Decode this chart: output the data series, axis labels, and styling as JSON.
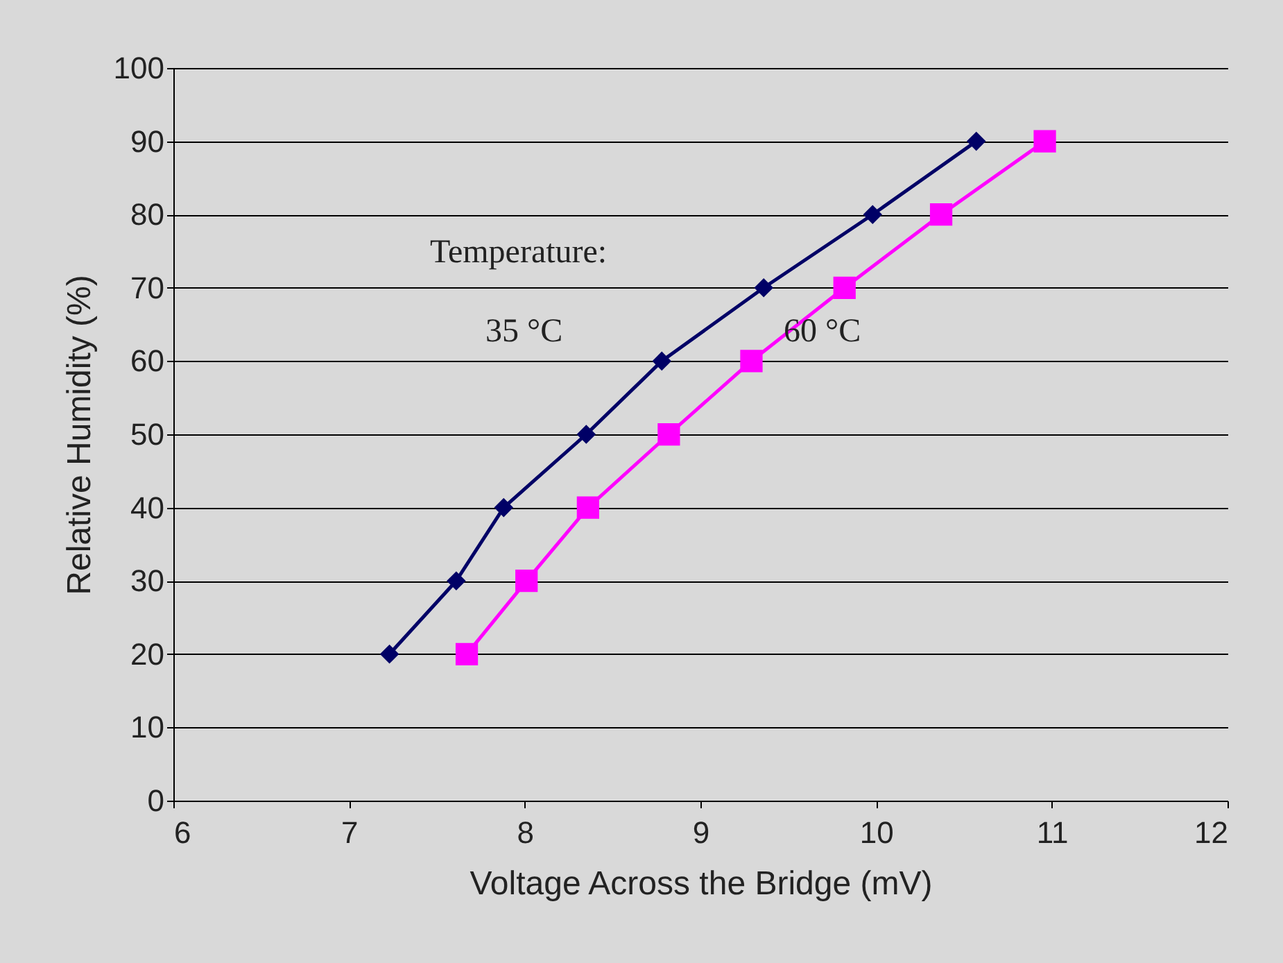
{
  "chart_data": {
    "type": "line",
    "xlabel": "Voltage Across the Bridge (mV)",
    "ylabel": "Relative Humidity (%)",
    "xlim": [
      6,
      12
    ],
    "xticks": [
      6,
      7,
      8,
      9,
      10,
      11,
      12
    ],
    "ylim": [
      0,
      100
    ],
    "yticks": [
      0,
      10,
      20,
      30,
      40,
      50,
      60,
      70,
      80,
      90,
      100
    ],
    "grid": "y",
    "legend": false,
    "annotations": [
      "Temperature:"
    ],
    "series": [
      {
        "name": "35 °C",
        "color": "#000066",
        "marker": "diamond",
        "x": [
          7.23,
          7.61,
          7.88,
          8.35,
          8.78,
          9.36,
          9.98,
          10.57
        ],
        "values": [
          20,
          30,
          40,
          50,
          60,
          70,
          80,
          90
        ]
      },
      {
        "name": "60 °C",
        "color": "#ff00ff",
        "marker": "square",
        "x": [
          7.67,
          8.01,
          8.36,
          8.82,
          9.29,
          9.82,
          10.37,
          10.96
        ],
        "values": [
          20,
          30,
          40,
          50,
          60,
          70,
          80,
          90
        ]
      }
    ]
  }
}
